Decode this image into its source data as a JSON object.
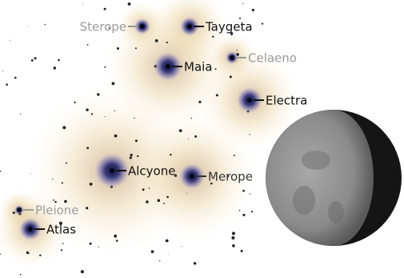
{
  "stars": [
    {
      "label": "Sterope"
    },
    {
      "label": "Taygeta"
    },
    {
      "label": "Maia"
    },
    {
      "label": "Celaeno"
    },
    {
      "label": "Electra"
    },
    {
      "label": "Alcyone"
    },
    {
      "label": "Merope"
    },
    {
      "label": "Pleione"
    },
    {
      "label": "Atlas"
    }
  ]
}
